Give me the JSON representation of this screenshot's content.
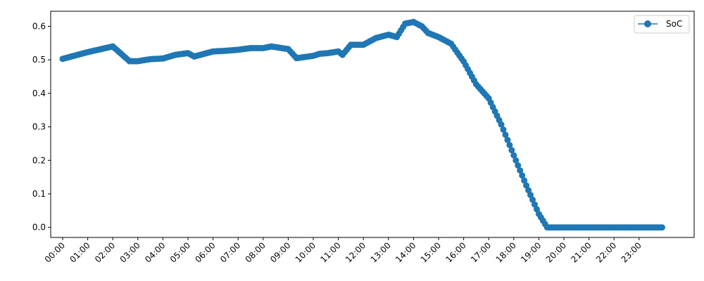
{
  "chart_data": {
    "type": "line",
    "title": "",
    "xlabel": "",
    "ylabel": "",
    "ylim": [
      -0.03,
      0.645
    ],
    "yticks": [
      "0.0",
      "0.1",
      "0.2",
      "0.3",
      "0.4",
      "0.5",
      "0.6"
    ],
    "xticks": [
      "00:00",
      "01:00",
      "02:00",
      "03:00",
      "04:00",
      "05:00",
      "06:00",
      "07:00",
      "08:00",
      "09:00",
      "10:00",
      "11:00",
      "12:00",
      "13:00",
      "14:00",
      "15:00",
      "16:00",
      "17:00",
      "18:00",
      "19:00",
      "20:00",
      "21:00",
      "22:00",
      "23:00"
    ],
    "sample_interval_minutes": 5,
    "grid": false,
    "legend_position": "upper right",
    "series": [
      {
        "name": "SoC",
        "color": "#1f77b4",
        "marker": "circle",
        "keypoints": [
          [
            "00:00",
            0.503
          ],
          [
            "01:00",
            0.523
          ],
          [
            "02:00",
            0.54
          ],
          [
            "02:40",
            0.496
          ],
          [
            "03:00",
            0.496
          ],
          [
            "03:30",
            0.502
          ],
          [
            "04:00",
            0.504
          ],
          [
            "04:30",
            0.515
          ],
          [
            "05:00",
            0.52
          ],
          [
            "05:15",
            0.51
          ],
          [
            "06:00",
            0.525
          ],
          [
            "06:30",
            0.527
          ],
          [
            "07:00",
            0.53
          ],
          [
            "07:30",
            0.535
          ],
          [
            "08:00",
            0.535
          ],
          [
            "08:20",
            0.54
          ],
          [
            "09:00",
            0.532
          ],
          [
            "09:20",
            0.505
          ],
          [
            "10:00",
            0.512
          ],
          [
            "10:15",
            0.518
          ],
          [
            "10:35",
            0.52
          ],
          [
            "11:00",
            0.525
          ],
          [
            "11:10",
            0.515
          ],
          [
            "11:30",
            0.545
          ],
          [
            "12:00",
            0.545
          ],
          [
            "12:30",
            0.565
          ],
          [
            "13:00",
            0.575
          ],
          [
            "13:20",
            0.568
          ],
          [
            "13:40",
            0.608
          ],
          [
            "14:00",
            0.613
          ],
          [
            "14:20",
            0.6
          ],
          [
            "14:35",
            0.58
          ],
          [
            "15:00",
            0.568
          ],
          [
            "15:30",
            0.548
          ],
          [
            "16:00",
            0.495
          ],
          [
            "16:30",
            0.427
          ],
          [
            "17:00",
            0.385
          ],
          [
            "17:30",
            0.307
          ],
          [
            "18:00",
            0.215
          ],
          [
            "18:30",
            0.125
          ],
          [
            "19:00",
            0.04
          ],
          [
            "19:20",
            0.0
          ],
          [
            "23:55",
            0.0
          ]
        ]
      }
    ]
  }
}
